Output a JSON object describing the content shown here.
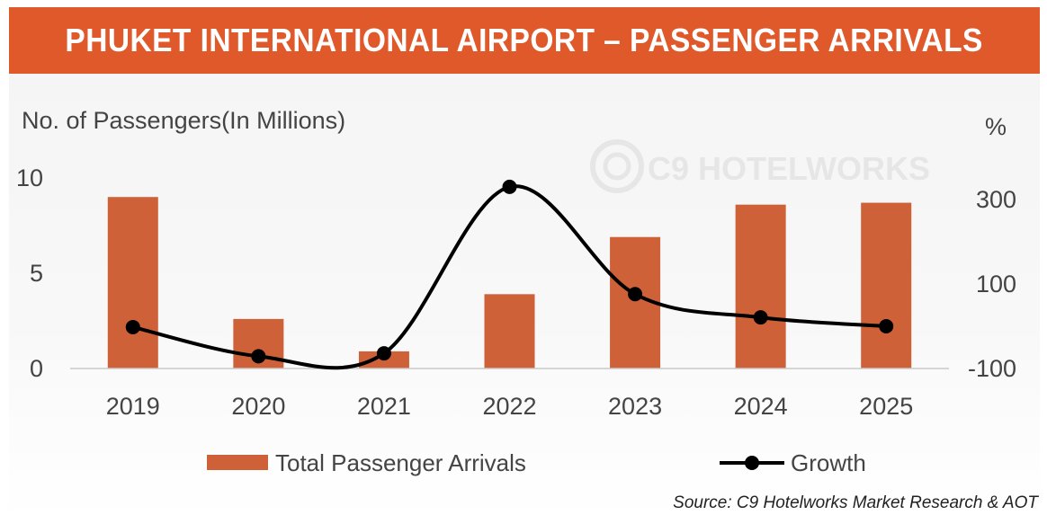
{
  "header": {
    "title": "PHUKET INTERNATIONAL AIRPORT – PASSENGER ARRIVALS"
  },
  "watermark": "C9 HOTELWORKS",
  "source": "Source: C9 Hotelworks Market Research & AOT",
  "colors": {
    "banner": "#e0592b",
    "bars": "#cf6139",
    "line": "#000000"
  },
  "chart_data": {
    "type": "bar",
    "categories": [
      "2019",
      "2020",
      "2021",
      "2022",
      "2023",
      "2024",
      "2025"
    ],
    "series": [
      {
        "name": "Total Passenger Arrivals",
        "type": "bar",
        "axis": "left",
        "values": [
          9.0,
          2.6,
          0.9,
          3.9,
          6.9,
          8.6,
          8.7
        ]
      },
      {
        "name": "Growth",
        "type": "line",
        "axis": "right",
        "values": [
          -2,
          -71,
          -64,
          330,
          76,
          21,
          0
        ]
      }
    ],
    "ylabel": "No. of Passengers(In Millions)",
    "y2label": "%",
    "ylim": [
      0,
      10
    ],
    "y2lim": [
      -100,
      300
    ],
    "yticks": [
      "0",
      "5",
      "10"
    ],
    "y2ticks": [
      "-100",
      "100",
      "300"
    ],
    "legend_position": "bottom"
  }
}
